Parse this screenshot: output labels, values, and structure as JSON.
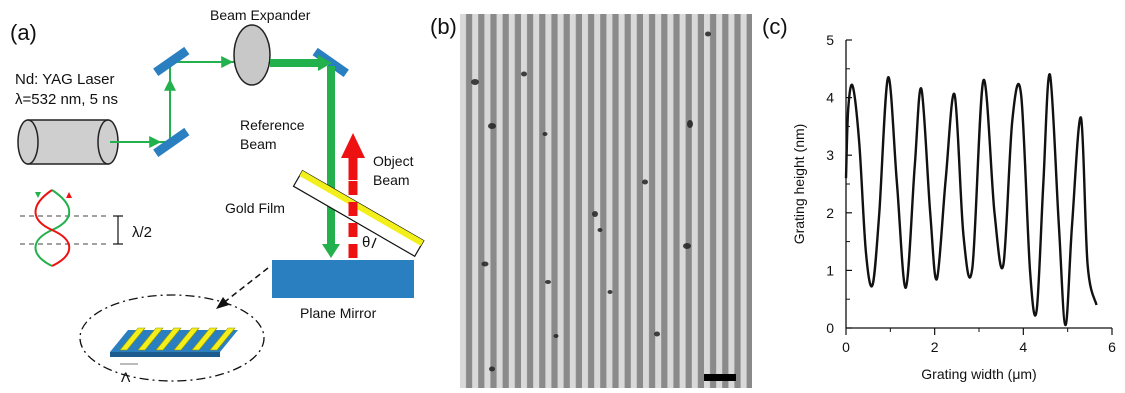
{
  "panel_a": {
    "label": "(a)",
    "laser_name": "Nd: YAG Laser",
    "laser_params": "λ=532 nm, 5 ns",
    "beam_expander": "Beam Expander",
    "reference_beam_1": "Reference",
    "reference_beam_2": "Beam",
    "object_beam_1": "Object",
    "object_beam_2": "Beam",
    "gold_film": "Gold Film",
    "plane_mirror": "Plane Mirror",
    "half_wavelength": "λ/2",
    "theta": "θ",
    "period": "Λ",
    "colors": {
      "green_beam": "#22b14c",
      "red_beam": "#ee1111",
      "mirror_blue": "#2a7fc1",
      "gold_yellow": "#f2ef1a"
    }
  },
  "panel_b": {
    "label": "(b)"
  },
  "panel_c": {
    "label": "(c)",
    "chart_data": {
      "type": "line",
      "xlabel": "Grating width (μm)",
      "ylabel": "Grating height (nm)",
      "xlim": [
        0,
        6
      ],
      "ylim": [
        0,
        5
      ],
      "xticks": [
        "0",
        "2",
        "4",
        "6"
      ],
      "yticks": [
        "0",
        "1",
        "2",
        "3",
        "4",
        "5"
      ],
      "x": [
        0.0,
        0.05,
        0.15,
        0.3,
        0.45,
        0.6,
        0.75,
        0.95,
        1.15,
        1.35,
        1.55,
        1.7,
        1.9,
        2.05,
        2.25,
        2.45,
        2.65,
        2.85,
        3.1,
        3.35,
        3.55,
        3.75,
        3.95,
        4.15,
        4.3,
        4.45,
        4.6,
        4.8,
        4.95,
        5.1,
        5.3,
        5.45,
        5.65
      ],
      "y": [
        2.6,
        3.8,
        4.2,
        3.2,
        1.3,
        0.75,
        2.0,
        4.35,
        2.5,
        0.7,
        2.8,
        4.15,
        2.0,
        0.85,
        2.6,
        4.05,
        1.6,
        1.05,
        4.3,
        2.0,
        1.1,
        3.6,
        4.05,
        1.0,
        0.3,
        2.5,
        4.4,
        1.8,
        0.05,
        1.8,
        3.65,
        1.1,
        0.4
      ]
    }
  }
}
